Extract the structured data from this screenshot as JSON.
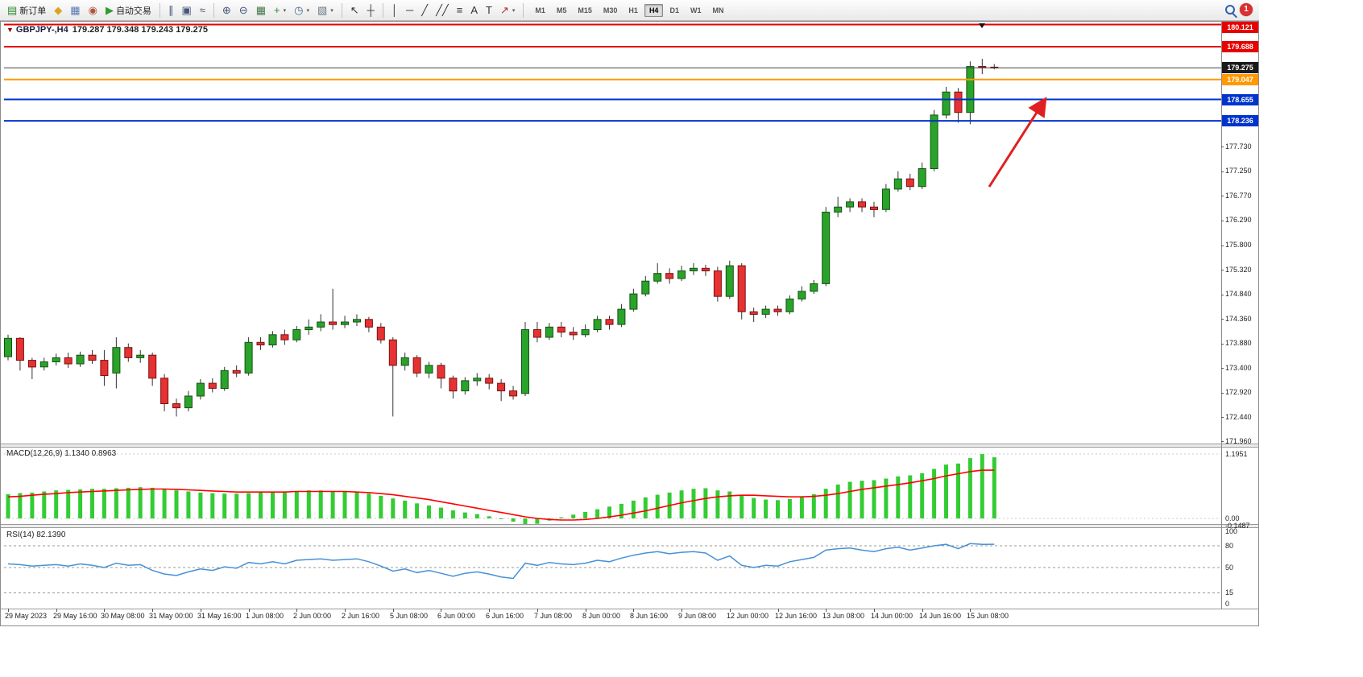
{
  "toolbar": {
    "new_order_label": "新订单",
    "autotrade_label": "自动交易",
    "buttons": [
      {
        "name": "new-order-button",
        "glyph": "▤",
        "glyph_color": "#2e8b2e",
        "label": "新订单"
      },
      {
        "name": "market-watch-icon",
        "glyph": "◆",
        "glyph_color": "#d9a520"
      },
      {
        "name": "print-icon",
        "glyph": "▦",
        "glyph_color": "#5a7ab0"
      },
      {
        "name": "refresh-icon",
        "glyph": "◉",
        "glyph_color": "#b05540"
      },
      {
        "name": "autotrading-button",
        "glyph": "▶",
        "glyph_color": "#2e9e2e",
        "label": "自动交易"
      },
      {
        "sep": true
      },
      {
        "name": "bar-chart-icon",
        "glyph": "∥",
        "glyph_color": "#445577"
      },
      {
        "name": "candlestick-chart-icon",
        "glyph": "▣",
        "glyph_color": "#445577"
      },
      {
        "name": "line-chart-icon",
        "glyph": "≈",
        "glyph_color": "#445577"
      },
      {
        "sep": true
      },
      {
        "name": "zoom-in-icon",
        "glyph": "⊕",
        "glyph_color": "#445577"
      },
      {
        "name": "zoom-out-icon",
        "glyph": "⊖",
        "glyph_color": "#445577"
      },
      {
        "name": "tile-windows-icon",
        "glyph": "▦",
        "glyph_color": "#447744"
      },
      {
        "name": "indicators-icon",
        "glyph": "+",
        "glyph_color": "#2e8b2e",
        "caret": "▾"
      },
      {
        "name": "periods-icon",
        "glyph": "◷",
        "glyph_color": "#446688",
        "caret": "▾"
      },
      {
        "name": "templates-icon",
        "glyph": "▧",
        "glyph_color": "#667788",
        "caret": "▾"
      },
      {
        "sep": true
      },
      {
        "name": "cursor-icon",
        "glyph": "↖",
        "glyph_color": "#333333"
      },
      {
        "name": "crosshair-icon",
        "glyph": "┼",
        "glyph_color": "#333333"
      },
      {
        "sep": true
      },
      {
        "name": "vertical-line-icon",
        "glyph": "│",
        "glyph_color": "#333333"
      },
      {
        "name": "horizontal-line-icon",
        "glyph": "─",
        "glyph_color": "#333333"
      },
      {
        "name": "trendline-icon",
        "glyph": "╱",
        "glyph_color": "#333333"
      },
      {
        "name": "channel-icon",
        "glyph": "╱╱",
        "glyph_color": "#333333"
      },
      {
        "name": "fibonacci-icon",
        "glyph": "≡",
        "glyph_color": "#333333"
      },
      {
        "name": "text-icon",
        "glyph": "A",
        "glyph_color": "#333333"
      },
      {
        "name": "text-label-icon",
        "glyph": "T",
        "glyph_color": "#333333"
      },
      {
        "name": "arrows-icon",
        "glyph": "↗",
        "glyph_color": "#aa3333",
        "caret": "▾"
      },
      {
        "sep": true
      }
    ],
    "timeframes": [
      "M1",
      "M5",
      "M15",
      "M30",
      "H1",
      "H4",
      "D1",
      "W1",
      "MN"
    ],
    "active_timeframe": "H4",
    "notification_count": "1"
  },
  "chart": {
    "symbol_label": "GBPJPY-,H4",
    "ohlc_text": "179.287 179.348 179.243 179.275",
    "macd_label": "MACD(12,26,9) 1.1340 0.8963",
    "rsi_label": "RSI(14) 82.1390"
  },
  "colors": {
    "up_body": "#29a329",
    "up_border": "#145214",
    "down_body": "#e63232",
    "down_border": "#7a1010",
    "wick": "#333333",
    "macd_bar": "#33cc33",
    "macd_signal": "#ff0000",
    "rsi_line": "#4791d6",
    "line_red": "#e60000",
    "line_orange": "#ff9900",
    "line_blue": "#0033cc",
    "current_price": "#1a1a1a"
  },
  "chart_data": [
    {
      "type": "candlestick",
      "symbol": "GBPJPY-",
      "timeframe": "H4",
      "title": "GBPJPY-,H4 179.287 179.348 179.243 179.275",
      "ylim": [
        171.72,
        180.25
      ],
      "grid": false,
      "x_labels": [
        "29 May 2023",
        "29 May 16:00",
        "30 May 08:00",
        "31 May 00:00",
        "31 May 16:00",
        "1 Jun 08:00",
        "2 Jun 00:00",
        "2 Jun 16:00",
        "5 Jun 08:00",
        "6 Jun 00:00",
        "6 Jun 16:00",
        "7 Jun 08:00",
        "8 Jun 00:00",
        "8 Jun 16:00",
        "9 Jun 08:00",
        "12 Jun 00:00",
        "12 Jun 16:00",
        "13 Jun 08:00",
        "14 Jun 00:00",
        "14 Jun 16:00",
        "15 Jun 08:00"
      ],
      "x_label_every": 4,
      "plain_ticks": [
        177.73,
        177.25,
        176.77,
        176.29,
        175.8,
        175.32,
        174.84,
        174.36,
        173.88,
        173.4,
        172.92,
        172.44,
        171.96
      ],
      "hlines": [
        {
          "price": 180.121,
          "color": "#e60000",
          "width": 2
        },
        {
          "price": 179.688,
          "color": "#e60000",
          "width": 2
        },
        {
          "price": 179.275,
          "color": "#444444",
          "width": 1,
          "badge_color": "#1a1a1a",
          "role": "current-price-line"
        },
        {
          "price": 179.047,
          "color": "#ff9900",
          "width": 2
        },
        {
          "price": 178.655,
          "color": "#0033cc",
          "width": 2
        },
        {
          "price": 178.236,
          "color": "#0033cc",
          "width": 2
        }
      ],
      "annotation_arrow": {
        "from": [
          1228,
          232
        ],
        "to": [
          1297,
          124
        ],
        "color": "#e02020"
      },
      "candles": [
        [
          173.62,
          174.05,
          173.55,
          173.98
        ],
        [
          173.98,
          174.0,
          173.35,
          173.55
        ],
        [
          173.55,
          173.6,
          173.18,
          173.42
        ],
        [
          173.42,
          173.6,
          173.35,
          173.52
        ],
        [
          173.52,
          173.68,
          173.45,
          173.6
        ],
        [
          173.6,
          173.7,
          173.4,
          173.48
        ],
        [
          173.48,
          173.72,
          173.42,
          173.65
        ],
        [
          173.65,
          173.75,
          173.48,
          173.55
        ],
        [
          173.55,
          173.75,
          173.05,
          173.25
        ],
        [
          173.3,
          174.0,
          173.0,
          173.8
        ],
        [
          173.8,
          173.88,
          173.52,
          173.6
        ],
        [
          173.6,
          173.75,
          173.5,
          173.65
        ],
        [
          173.65,
          173.7,
          173.05,
          173.2
        ],
        [
          173.2,
          173.28,
          172.55,
          172.7
        ],
        [
          172.7,
          172.8,
          172.45,
          172.62
        ],
        [
          172.62,
          172.95,
          172.55,
          172.85
        ],
        [
          172.85,
          173.18,
          172.78,
          173.1
        ],
        [
          173.1,
          173.2,
          172.92,
          173.0
        ],
        [
          173.0,
          173.42,
          172.95,
          173.35
        ],
        [
          173.35,
          173.45,
          173.22,
          173.3
        ],
        [
          173.3,
          174.0,
          173.25,
          173.9
        ],
        [
          173.9,
          174.0,
          173.75,
          173.85
        ],
        [
          173.85,
          174.12,
          173.8,
          174.05
        ],
        [
          174.05,
          174.15,
          173.85,
          173.95
        ],
        [
          173.95,
          174.22,
          173.9,
          174.15
        ],
        [
          174.15,
          174.35,
          174.05,
          174.2
        ],
        [
          174.2,
          174.45,
          174.12,
          174.3
        ],
        [
          174.3,
          174.95,
          174.15,
          174.25
        ],
        [
          174.25,
          174.42,
          174.18,
          174.3
        ],
        [
          174.3,
          174.45,
          174.22,
          174.35
        ],
        [
          174.35,
          174.4,
          174.1,
          174.2
        ],
        [
          174.2,
          174.28,
          173.88,
          173.95
        ],
        [
          173.95,
          174.0,
          172.45,
          173.45
        ],
        [
          173.45,
          173.7,
          173.35,
          173.6
        ],
        [
          173.6,
          173.65,
          173.22,
          173.3
        ],
        [
          173.3,
          173.52,
          173.2,
          173.45
        ],
        [
          173.45,
          173.5,
          173.0,
          173.2
        ],
        [
          173.2,
          173.25,
          172.8,
          172.95
        ],
        [
          172.95,
          173.22,
          172.88,
          173.15
        ],
        [
          173.15,
          173.3,
          173.05,
          173.2
        ],
        [
          173.2,
          173.28,
          172.98,
          173.1
        ],
        [
          173.1,
          173.18,
          172.75,
          172.95
        ],
        [
          172.95,
          173.05,
          172.78,
          172.85
        ],
        [
          172.9,
          174.3,
          172.85,
          174.15
        ],
        [
          174.15,
          174.3,
          173.9,
          174.0
        ],
        [
          174.0,
          174.28,
          173.95,
          174.2
        ],
        [
          174.2,
          174.3,
          174.0,
          174.1
        ],
        [
          174.1,
          174.2,
          173.95,
          174.05
        ],
        [
          174.05,
          174.25,
          174.0,
          174.15
        ],
        [
          174.15,
          174.42,
          174.1,
          174.35
        ],
        [
          174.35,
          174.42,
          174.15,
          174.25
        ],
        [
          174.25,
          174.65,
          174.2,
          174.55
        ],
        [
          174.55,
          174.95,
          174.5,
          174.85
        ],
        [
          174.85,
          175.2,
          174.8,
          175.1
        ],
        [
          175.1,
          175.45,
          175.05,
          175.25
        ],
        [
          175.25,
          175.35,
          175.05,
          175.15
        ],
        [
          175.15,
          175.4,
          175.1,
          175.3
        ],
        [
          175.3,
          175.45,
          175.22,
          175.35
        ],
        [
          175.35,
          175.42,
          175.2,
          175.3
        ],
        [
          175.3,
          175.38,
          174.7,
          174.8
        ],
        [
          174.8,
          175.5,
          174.75,
          175.4
        ],
        [
          175.4,
          175.45,
          174.35,
          174.5
        ],
        [
          174.5,
          174.58,
          174.3,
          174.45
        ],
        [
          174.45,
          174.62,
          174.38,
          174.55
        ],
        [
          174.55,
          174.62,
          174.42,
          174.5
        ],
        [
          174.5,
          174.82,
          174.45,
          174.75
        ],
        [
          174.75,
          175.0,
          174.7,
          174.9
        ],
        [
          174.9,
          175.12,
          174.85,
          175.05
        ],
        [
          175.05,
          176.55,
          175.0,
          176.45
        ],
        [
          176.45,
          176.75,
          176.35,
          176.55
        ],
        [
          176.55,
          176.72,
          176.45,
          176.65
        ],
        [
          176.65,
          176.72,
          176.45,
          176.55
        ],
        [
          176.55,
          176.65,
          176.35,
          176.5
        ],
        [
          176.5,
          177.0,
          176.45,
          176.9
        ],
        [
          176.9,
          177.25,
          176.85,
          177.1
        ],
        [
          177.1,
          177.2,
          176.88,
          176.95
        ],
        [
          176.95,
          177.42,
          176.9,
          177.3
        ],
        [
          177.3,
          178.45,
          177.25,
          178.35
        ],
        [
          178.35,
          178.9,
          178.28,
          178.8
        ],
        [
          178.8,
          178.88,
          178.2,
          178.4
        ],
        [
          178.4,
          179.4,
          178.17,
          179.3
        ],
        [
          179.3,
          179.45,
          179.15,
          179.287
        ],
        [
          179.287,
          179.348,
          179.243,
          179.275
        ]
      ]
    },
    {
      "type": "bar",
      "name": "MACD(12,26,9)",
      "current_values": "1.1340 0.8963",
      "ylim": [
        -0.2,
        1.25
      ],
      "levels": [
        1.1951,
        0,
        -0.1487
      ],
      "axis_labels": [
        {
          "v": 1.1951,
          "t": "1.1951"
        },
        {
          "v": 0,
          "t": "0.00"
        },
        {
          "v": -0.1487,
          "t": "-0.1487"
        }
      ],
      "values": [
        0.45,
        0.47,
        0.48,
        0.5,
        0.52,
        0.53,
        0.54,
        0.55,
        0.55,
        0.56,
        0.57,
        0.58,
        0.57,
        0.55,
        0.52,
        0.5,
        0.48,
        0.47,
        0.46,
        0.46,
        0.47,
        0.48,
        0.49,
        0.5,
        0.51,
        0.52,
        0.52,
        0.51,
        0.5,
        0.49,
        0.46,
        0.42,
        0.37,
        0.33,
        0.28,
        0.24,
        0.2,
        0.15,
        0.11,
        0.08,
        0.04,
        0.0,
        -0.06,
        -0.149,
        -0.1,
        -0.04,
        0.02,
        0.07,
        0.12,
        0.17,
        0.22,
        0.27,
        0.33,
        0.39,
        0.44,
        0.48,
        0.52,
        0.55,
        0.56,
        0.52,
        0.5,
        0.44,
        0.38,
        0.35,
        0.34,
        0.36,
        0.4,
        0.45,
        0.55,
        0.63,
        0.68,
        0.7,
        0.71,
        0.74,
        0.78,
        0.8,
        0.84,
        0.92,
        1.0,
        1.02,
        1.12,
        1.195,
        1.134
      ],
      "signal": [
        0.4,
        0.41,
        0.43,
        0.45,
        0.46,
        0.48,
        0.49,
        0.5,
        0.51,
        0.52,
        0.53,
        0.54,
        0.545,
        0.545,
        0.54,
        0.53,
        0.52,
        0.51,
        0.5,
        0.49,
        0.49,
        0.49,
        0.49,
        0.49,
        0.5,
        0.5,
        0.5,
        0.5,
        0.5,
        0.49,
        0.48,
        0.46,
        0.44,
        0.41,
        0.38,
        0.35,
        0.31,
        0.27,
        0.23,
        0.19,
        0.15,
        0.11,
        0.07,
        0.03,
        0.0,
        -0.02,
        -0.03,
        -0.03,
        -0.02,
        0.0,
        0.03,
        0.06,
        0.1,
        0.14,
        0.19,
        0.24,
        0.29,
        0.33,
        0.37,
        0.4,
        0.42,
        0.43,
        0.43,
        0.42,
        0.41,
        0.4,
        0.4,
        0.41,
        0.43,
        0.46,
        0.5,
        0.54,
        0.57,
        0.6,
        0.63,
        0.66,
        0.7,
        0.74,
        0.79,
        0.83,
        0.87,
        0.895,
        0.896
      ]
    },
    {
      "type": "line",
      "name": "RSI(14)",
      "current_values": "82.1390",
      "ylim": [
        0,
        100
      ],
      "dashed_levels": [
        80,
        50,
        15
      ],
      "axis_labels": [
        {
          "v": 100,
          "t": "100"
        },
        {
          "v": 80,
          "t": "80"
        },
        {
          "v": 50,
          "t": "50"
        },
        {
          "v": 15,
          "t": "15"
        },
        {
          "v": 0,
          "t": "0"
        }
      ],
      "values": [
        55,
        54,
        52,
        53,
        54,
        52,
        55,
        53,
        50,
        56,
        53,
        54,
        46,
        41,
        39,
        44,
        48,
        46,
        51,
        49,
        57,
        55,
        58,
        55,
        60,
        61,
        62,
        60,
        61,
        62,
        58,
        52,
        45,
        48,
        43,
        46,
        42,
        38,
        42,
        44,
        41,
        37,
        35,
        56,
        53,
        57,
        55,
        54,
        56,
        60,
        58,
        63,
        67,
        70,
        72,
        69,
        71,
        72,
        70,
        60,
        66,
        53,
        50,
        53,
        52,
        58,
        61,
        64,
        74,
        76,
        77,
        74,
        72,
        76,
        78,
        74,
        77,
        80,
        82,
        76,
        83,
        82,
        82.14
      ]
    }
  ]
}
